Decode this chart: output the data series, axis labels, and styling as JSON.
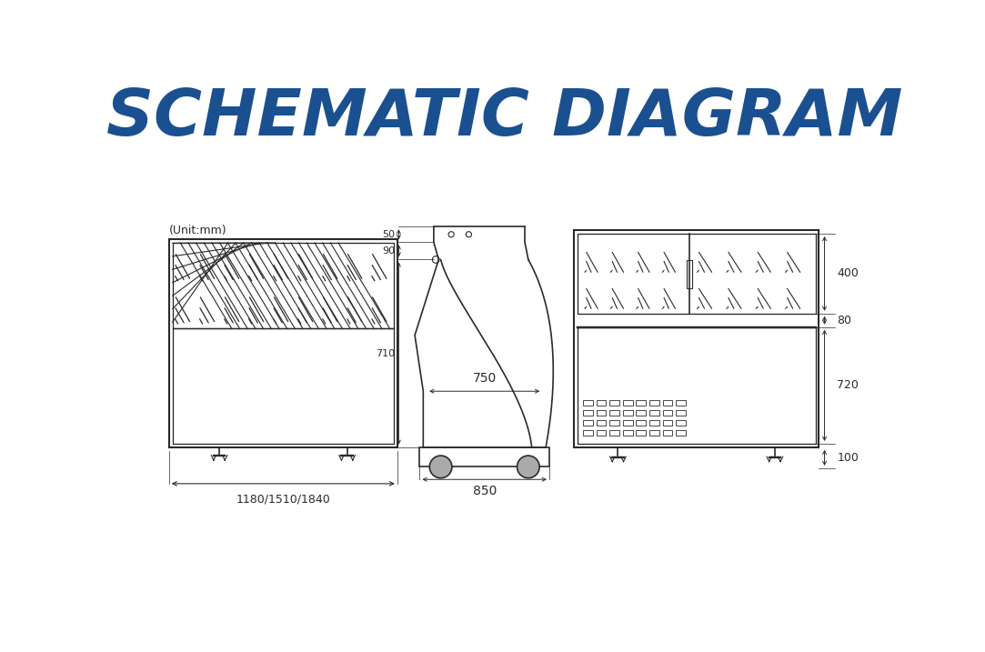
{
  "title": "SCHEMATIC DIAGRAM",
  "title_color": "#1a5090",
  "unit_label": "(Unit:mm)",
  "bg_color": "#ffffff",
  "line_color": "#2a2a2a",
  "dim_color": "#2a2a2a",
  "front_width_label": "1180/1510/1840",
  "sv_label_50": "50",
  "sv_label_90": "90",
  "sv_label_710": "710",
  "sv_label_750": "750",
  "sv_label_850": "850",
  "rv_label_400": "400",
  "rv_label_80": "80",
  "rv_label_720": "720",
  "rv_label_100": "100"
}
